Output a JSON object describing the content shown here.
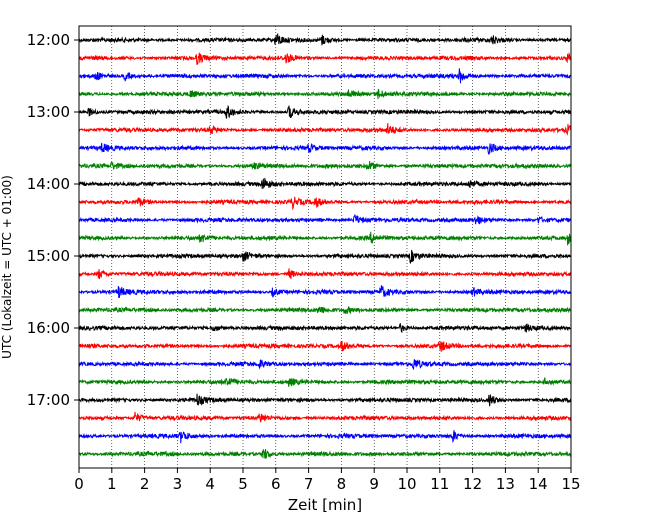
{
  "chart_data": {
    "type": "line",
    "title": "",
    "xlabel": "Zeit  [min]",
    "ylabel": "UTC (Lokalzeit = UTC + 01:00)",
    "xlim": [
      0,
      15
    ],
    "x_ticks": [
      0,
      1,
      2,
      3,
      4,
      5,
      6,
      7,
      8,
      9,
      10,
      11,
      12,
      13,
      14,
      15
    ],
    "x_tick_labels": [
      "0",
      "1",
      "2",
      "3",
      "4",
      "5",
      "6",
      "7",
      "8",
      "9",
      "10",
      "11",
      "12",
      "13",
      "14",
      "15"
    ],
    "y_tick_labels": [
      "12:00",
      "13:00",
      "14:00",
      "15:00",
      "16:00",
      "17:00"
    ],
    "minutes_per_trace": 15,
    "grid": "vertical-dotted",
    "colors": [
      "#000000",
      "#ff0000",
      "#0000ff",
      "#008000"
    ],
    "series": [
      {
        "start": "12:00",
        "color": "#000000",
        "events": [
          [
            6.0,
            1.0
          ],
          [
            7.4,
            0.7
          ],
          [
            12.6,
            0.6
          ]
        ]
      },
      {
        "start": "12:15",
        "color": "#ff0000",
        "events": [
          [
            3.6,
            0.8
          ],
          [
            6.3,
            0.7
          ],
          [
            14.9,
            0.6
          ]
        ]
      },
      {
        "start": "12:30",
        "color": "#0000ff",
        "events": [
          [
            0.5,
            0.6
          ],
          [
            1.4,
            0.6
          ],
          [
            11.6,
            1.0
          ]
        ]
      },
      {
        "start": "12:45",
        "color": "#008000",
        "events": [
          [
            3.4,
            0.5
          ],
          [
            8.2,
            0.5
          ],
          [
            9.1,
            0.7
          ]
        ]
      },
      {
        "start": "13:00",
        "color": "#000000",
        "events": [
          [
            0.3,
            0.6
          ],
          [
            4.5,
            0.9
          ],
          [
            6.4,
            1.0
          ]
        ]
      },
      {
        "start": "13:15",
        "color": "#ff0000",
        "events": [
          [
            4.0,
            0.5
          ],
          [
            9.4,
            0.8
          ],
          [
            14.9,
            0.6
          ]
        ]
      },
      {
        "start": "13:30",
        "color": "#0000ff",
        "events": [
          [
            0.7,
            0.6
          ],
          [
            7.0,
            0.6
          ],
          [
            12.5,
            0.8
          ]
        ]
      },
      {
        "start": "13:45",
        "color": "#008000",
        "events": [
          [
            1.0,
            0.5
          ],
          [
            5.3,
            0.5
          ],
          [
            8.8,
            0.8
          ]
        ]
      },
      {
        "start": "14:00",
        "color": "#000000",
        "events": [
          [
            5.6,
            1.0
          ],
          [
            11.9,
            0.6
          ]
        ]
      },
      {
        "start": "14:15",
        "color": "#ff0000",
        "events": [
          [
            1.8,
            0.6
          ],
          [
            6.5,
            0.8
          ],
          [
            7.2,
            0.7
          ]
        ]
      },
      {
        "start": "14:30",
        "color": "#0000ff",
        "events": [
          [
            8.4,
            0.8
          ],
          [
            12.1,
            0.6
          ],
          [
            14.0,
            0.5
          ]
        ]
      },
      {
        "start": "14:45",
        "color": "#008000",
        "events": [
          [
            3.7,
            0.6
          ],
          [
            8.9,
            0.7
          ],
          [
            14.9,
            0.8
          ]
        ]
      },
      {
        "start": "15:00",
        "color": "#000000",
        "events": [
          [
            5.0,
            0.7
          ],
          [
            10.1,
            0.9
          ]
        ]
      },
      {
        "start": "15:15",
        "color": "#ff0000",
        "events": [
          [
            0.6,
            0.7
          ],
          [
            6.4,
            0.7
          ]
        ]
      },
      {
        "start": "15:30",
        "color": "#0000ff",
        "events": [
          [
            1.2,
            0.8
          ],
          [
            5.9,
            0.6
          ],
          [
            9.2,
            0.9
          ],
          [
            12.0,
            0.6
          ]
        ]
      },
      {
        "start": "15:45",
        "color": "#008000",
        "events": [
          [
            7.3,
            0.6
          ],
          [
            8.1,
            0.5
          ]
        ]
      },
      {
        "start": "16:00",
        "color": "#000000",
        "events": [
          [
            4.1,
            0.5
          ],
          [
            9.8,
            0.6
          ],
          [
            13.6,
            0.5
          ]
        ]
      },
      {
        "start": "16:15",
        "color": "#ff0000",
        "events": [
          [
            8.0,
            0.7
          ],
          [
            11.0,
            0.8
          ]
        ]
      },
      {
        "start": "16:30",
        "color": "#0000ff",
        "events": [
          [
            10.2,
            0.8
          ],
          [
            5.5,
            0.5
          ]
        ]
      },
      {
        "start": "16:45",
        "color": "#008000",
        "events": [
          [
            4.5,
            0.7
          ],
          [
            6.4,
            0.6
          ],
          [
            14.2,
            0.5
          ]
        ]
      },
      {
        "start": "17:00",
        "color": "#000000",
        "events": [
          [
            3.6,
            0.8
          ],
          [
            12.5,
            0.9
          ]
        ]
      },
      {
        "start": "17:15",
        "color": "#ff0000",
        "events": [
          [
            1.7,
            0.8
          ],
          [
            5.5,
            0.7
          ]
        ]
      },
      {
        "start": "17:30",
        "color": "#0000ff",
        "events": [
          [
            3.1,
            0.8
          ],
          [
            11.4,
            0.8
          ]
        ]
      },
      {
        "start": "17:45",
        "color": "#008000",
        "events": [
          [
            5.6,
            1.0
          ]
        ]
      }
    ]
  }
}
